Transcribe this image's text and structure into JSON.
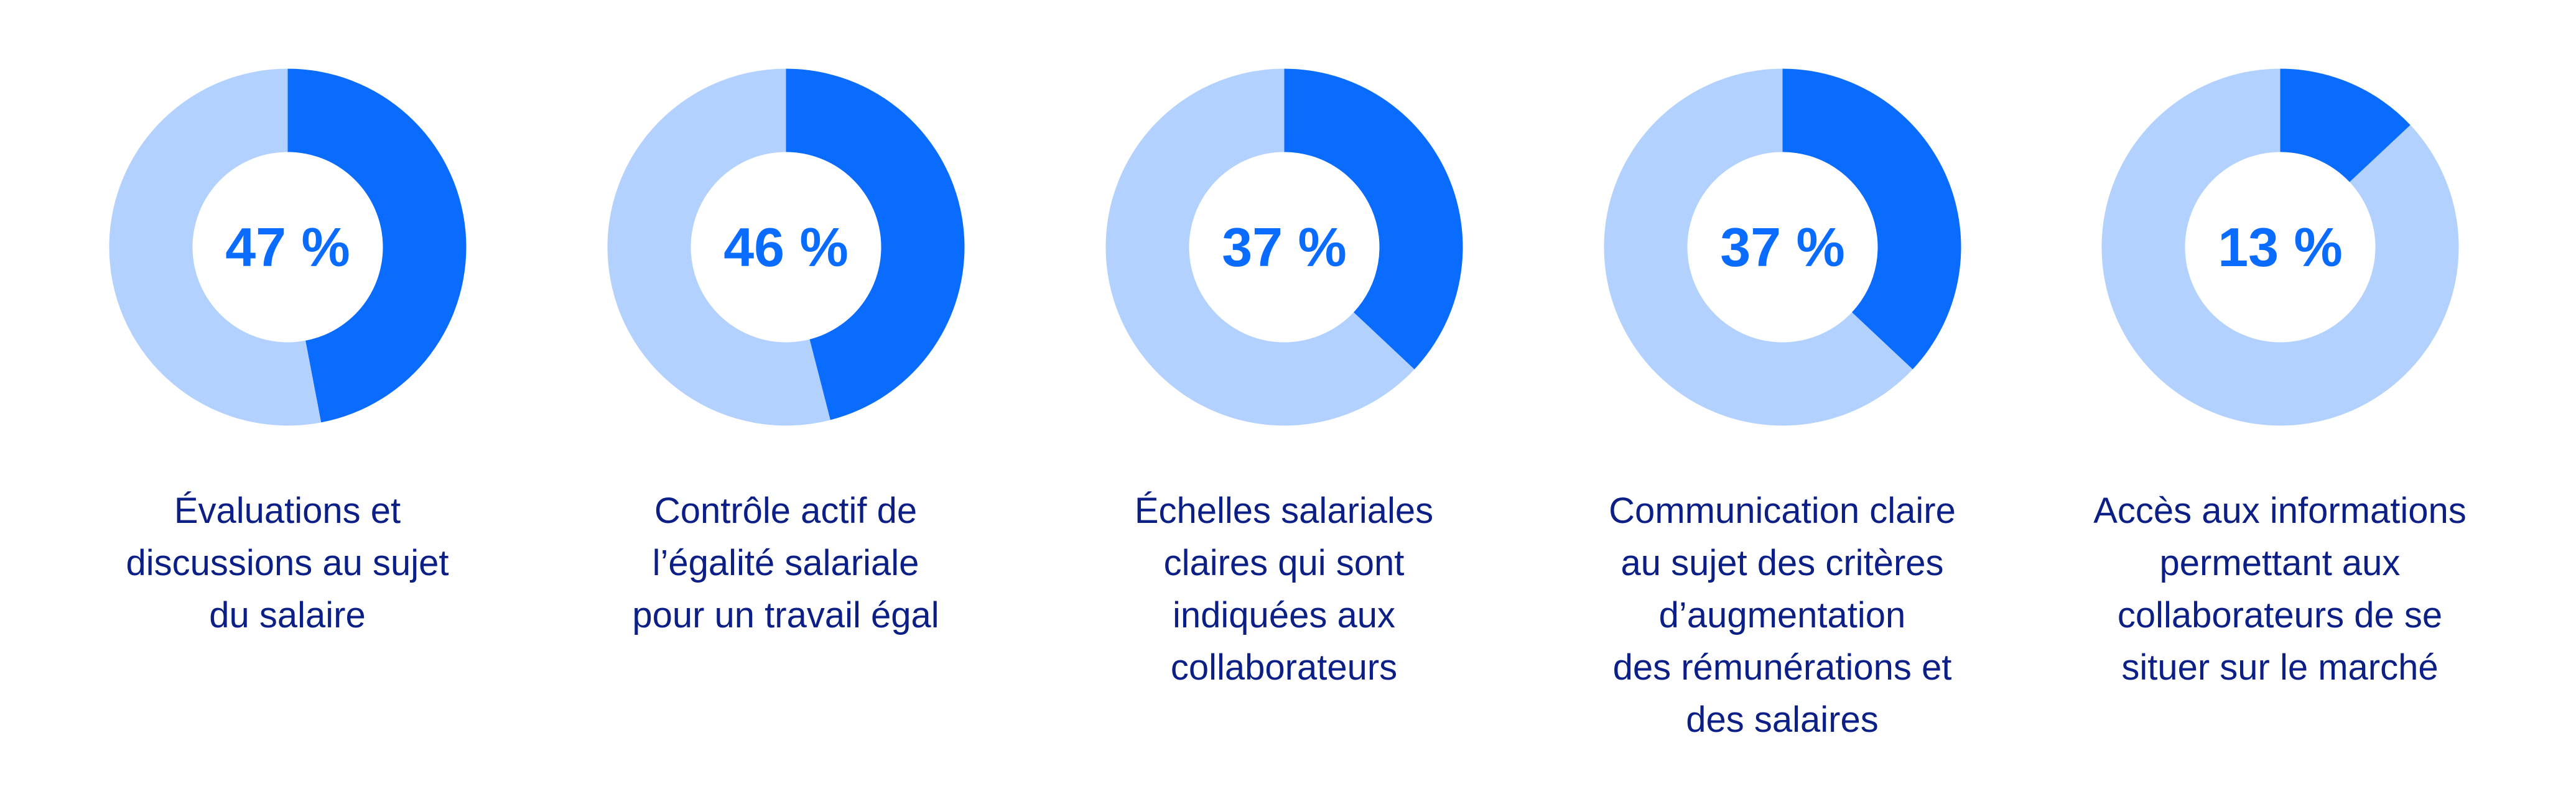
{
  "colors": {
    "filled": "#0a6cff",
    "remainder": "#b3d1ff",
    "percent_text": "#0a6cff",
    "caption_text": "#0b1f86"
  },
  "chart_data": [
    {
      "type": "pie",
      "value": 47,
      "value_label": "47 %",
      "caption_lines": [
        "Évaluations et",
        "discussions au sujet",
        "du salaire"
      ]
    },
    {
      "type": "pie",
      "value": 46,
      "value_label": "46 %",
      "caption_lines": [
        "Contrôle actif de",
        "l’égalité salariale",
        "pour un travail égal"
      ]
    },
    {
      "type": "pie",
      "value": 37,
      "value_label": "37 %",
      "caption_lines": [
        "Échelles salariales",
        "claires qui sont",
        "indiquées aux",
        "collaborateurs"
      ]
    },
    {
      "type": "pie",
      "value": 37,
      "value_label": "37 %",
      "caption_lines": [
        "Communication claire",
        "au sujet des critères",
        "d’augmentation",
        "des rémunérations et",
        "des salaires"
      ]
    },
    {
      "type": "pie",
      "value": 13,
      "value_label": "13 %",
      "caption_lines": [
        "Accès aux informations",
        "permettant aux",
        "collaborateurs de se",
        "situer sur le marché"
      ]
    }
  ]
}
